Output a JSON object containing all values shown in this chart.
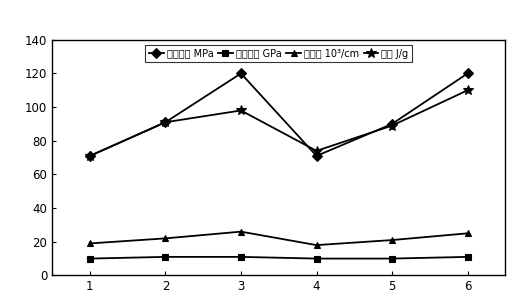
{
  "x": [
    1,
    2,
    3,
    4,
    5,
    6
  ],
  "series": [
    {
      "key": "剪切应力 MPa",
      "values": [
        71,
        91,
        120,
        71,
        90,
        120
      ],
      "color": "#000000",
      "marker": "D",
      "linewidth": 1.3,
      "markersize": 5
    },
    {
      "key": "抗拉强度 GPa",
      "values": [
        10,
        11,
        11,
        10,
        10,
        11
      ],
      "color": "#000000",
      "marker": "s",
      "linewidth": 1.3,
      "markersize": 5
    },
    {
      "key": "电导率 10³/cm",
      "values": [
        19,
        22,
        26,
        18,
        21,
        25
      ],
      "color": "#000000",
      "marker": "^",
      "linewidth": 1.3,
      "markersize": 5
    },
    {
      "key": "韧度 J/g",
      "values": [
        71,
        91,
        98,
        74,
        89,
        110
      ],
      "color": "#000000",
      "marker": "*",
      "linewidth": 1.3,
      "markersize": 7
    }
  ],
  "legend_labels": [
    "剪切应力 MPa",
    "抗拉强度 GPa",
    "电导率 10³/cm",
    "韧度 J/g"
  ],
  "xlim": [
    0.5,
    6.5
  ],
  "ylim": [
    0,
    140
  ],
  "yticks": [
    0,
    20,
    40,
    60,
    80,
    100,
    120,
    140
  ],
  "xticks": [
    1,
    2,
    3,
    4,
    5,
    6
  ],
  "background_color": "#ffffff"
}
